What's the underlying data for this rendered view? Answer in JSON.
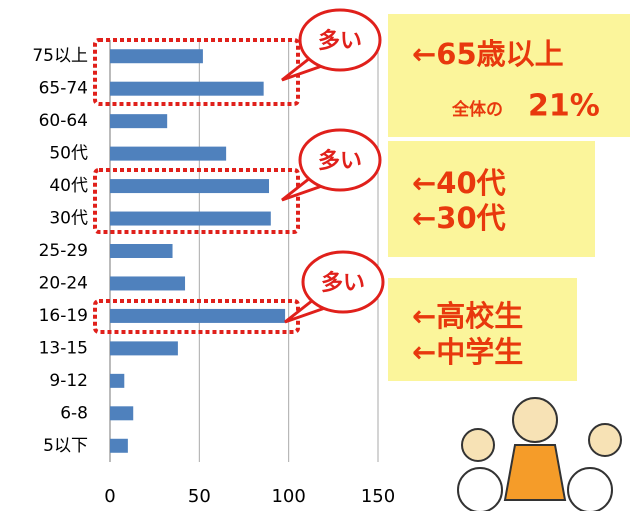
{
  "chart_data": {
    "type": "bar",
    "orientation": "horizontal",
    "categories": [
      "75以上",
      "65-74",
      "60-64",
      "50代",
      "40代",
      "30代",
      "25-29",
      "20-24",
      "16-19",
      "13-15",
      "9-12",
      "6-8",
      "5以下"
    ],
    "values": [
      52,
      86,
      32,
      65,
      89,
      90,
      35,
      42,
      98,
      38,
      8,
      13,
      10
    ],
    "color": "#4f81bd",
    "xlim": [
      0,
      150
    ],
    "xticks": [
      0,
      50,
      100,
      150
    ],
    "grid": true,
    "callouts": [
      "多い",
      "多い",
      "多い"
    ],
    "notes": [
      "←65歳以上",
      "全体の",
      "21%",
      "←40代",
      "←30代",
      "←高校生",
      "←中学生"
    ]
  }
}
